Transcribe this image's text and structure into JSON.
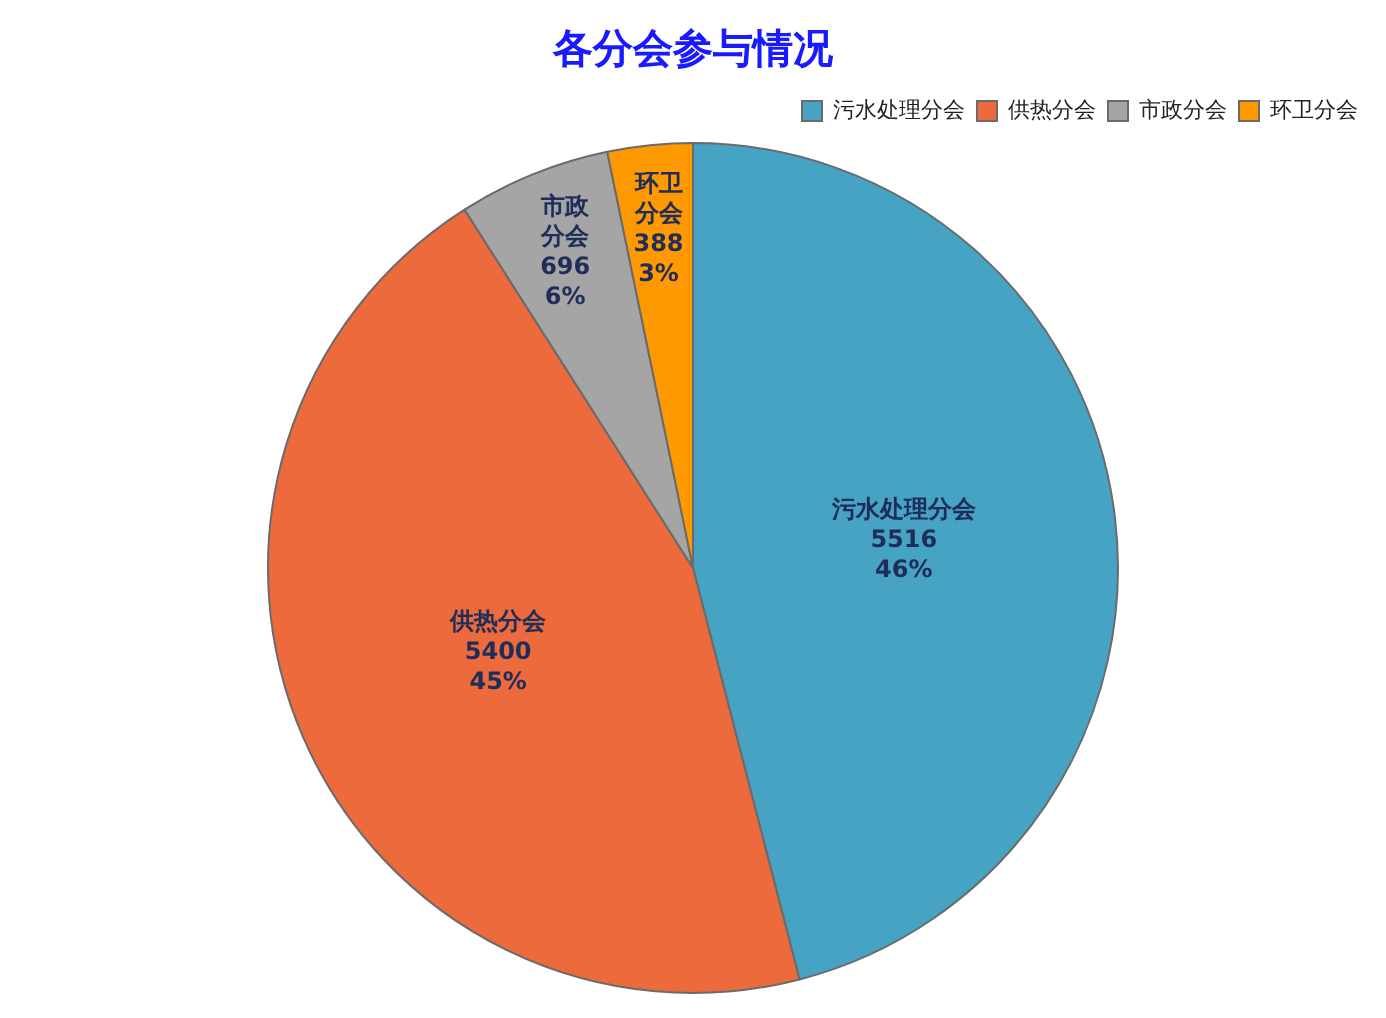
{
  "chart_data": {
    "type": "pie",
    "title": "各分会参与情况",
    "categories": [
      "污水处理分会",
      "供热分会",
      "市政分会",
      "环卫分会"
    ],
    "values": [
      5516,
      5400,
      696,
      388
    ],
    "colors": [
      "#46a3c4",
      "#ec6a3c",
      "#a5a5a5",
      "#ff9900"
    ],
    "value_labels": [
      "污水处理分会\n5516\n46%",
      "供热分会\n5400\n45%",
      "市政分会\n696\n6%",
      "环卫分会\n388\n3%"
    ],
    "legend": "top right"
  }
}
